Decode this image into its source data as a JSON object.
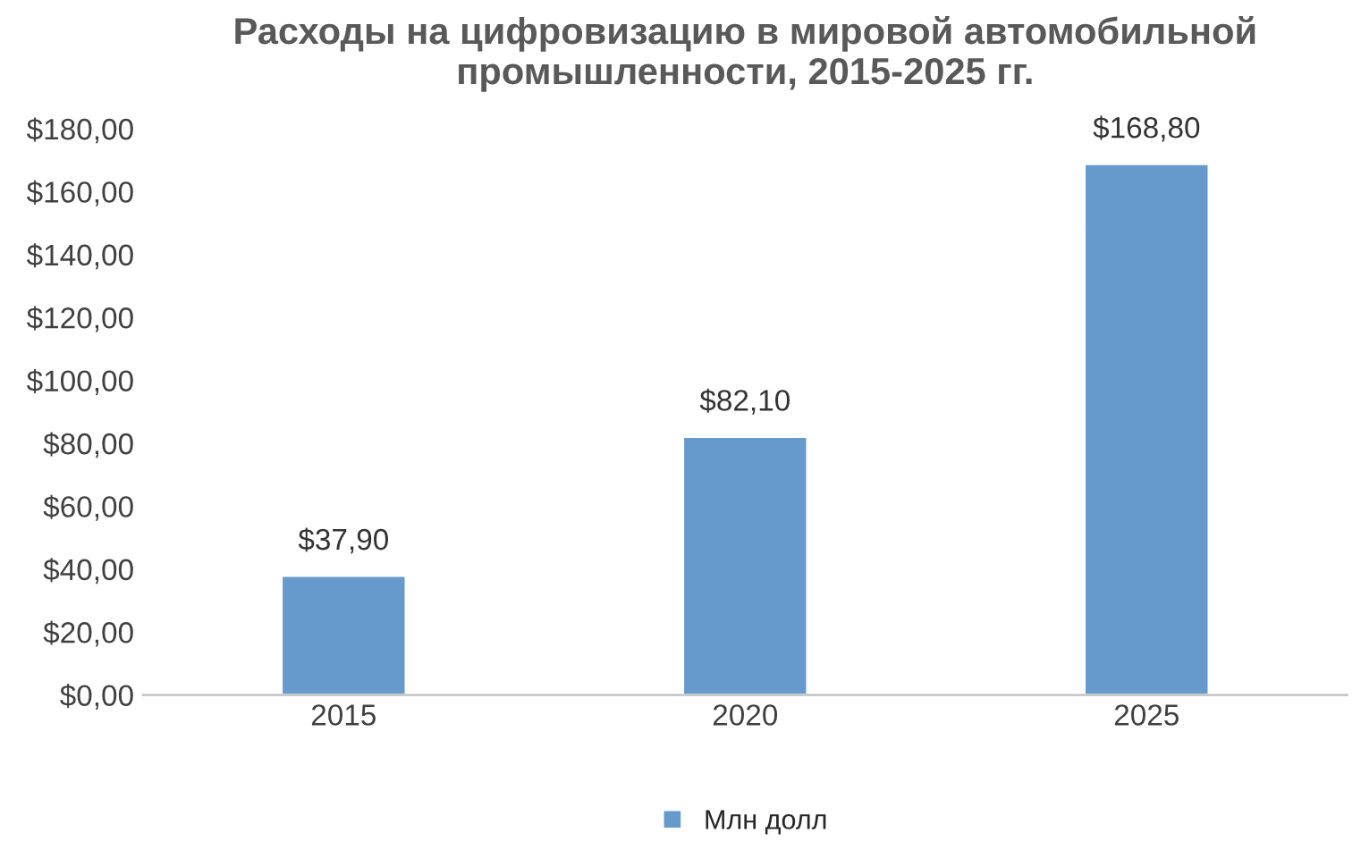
{
  "chart_data": {
    "type": "bar",
    "title": "Расходы на цифровизацию в мировой автомобильной\nпромышленности, 2015-2025 гг.",
    "categories": [
      "2015",
      "2020",
      "2025"
    ],
    "series": [
      {
        "name": "Млн долл",
        "color": "#6699cc",
        "values": [
          37.9,
          82.1,
          168.8
        ],
        "value_labels": [
          "$37,90",
          "$82,10",
          "$168,80"
        ]
      }
    ],
    "ylim": [
      0,
      180
    ],
    "yticks": [
      {
        "value": 0,
        "label": "$0,00"
      },
      {
        "value": 20,
        "label": "$20,00"
      },
      {
        "value": 40,
        "label": "$40,00"
      },
      {
        "value": 60,
        "label": "$60,00"
      },
      {
        "value": 80,
        "label": "$80,00"
      },
      {
        "value": 100,
        "label": "$100,00"
      },
      {
        "value": 120,
        "label": "$120,00"
      },
      {
        "value": 140,
        "label": "$140,00"
      },
      {
        "value": 160,
        "label": "$160,00"
      },
      {
        "value": 180,
        "label": "$180,00"
      }
    ],
    "grid": false,
    "legend": "bottom"
  }
}
